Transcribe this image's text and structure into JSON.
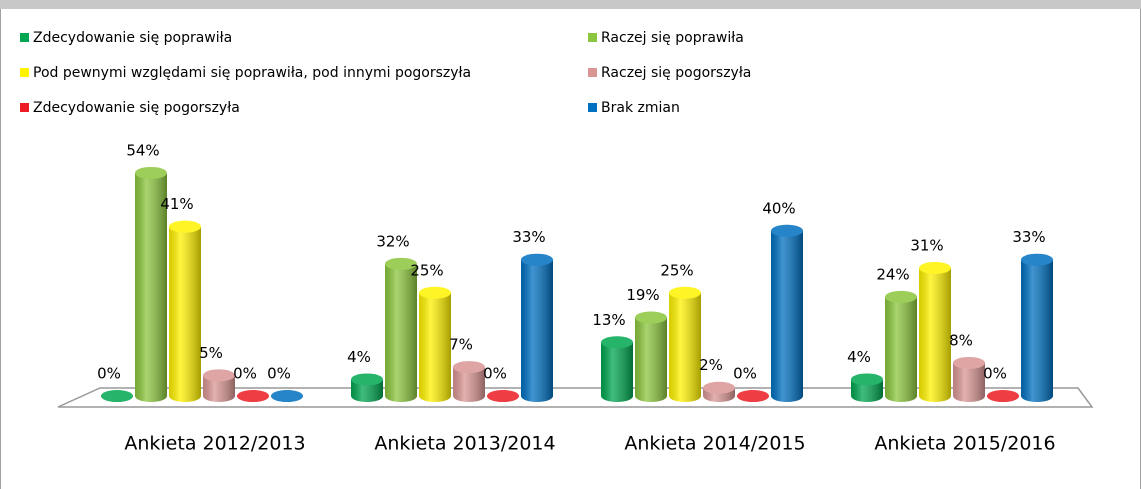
{
  "chart_data": {
    "type": "bar3d",
    "categories": [
      "Ankieta 2012/2013",
      "Ankieta 2013/2014",
      "Ankieta 2014/2015",
      "Ankieta 2015/2016"
    ],
    "series": [
      {
        "name": "Zdecydowanie się poprawiła",
        "color": "#00a650",
        "values": [
          0,
          4,
          13,
          4
        ],
        "value_labels": [
          "0%",
          "4%",
          "13%",
          "4%"
        ]
      },
      {
        "name": "Raczej się poprawiła",
        "color": "#8cc63e",
        "values": [
          54,
          32,
          19,
          24
        ],
        "value_labels": [
          "54%",
          "32%",
          "19%",
          "24%"
        ]
      },
      {
        "name": "Pod pewnymi względami się poprawiła, pod innymi pogorszyła",
        "color": "#fff200",
        "values": [
          41,
          25,
          25,
          31
        ],
        "value_labels": [
          "41%",
          "25%",
          "25%",
          "31%"
        ]
      },
      {
        "name": "Raczej się pogorszyła",
        "color": "#d99694",
        "values": [
          5,
          7,
          2,
          8
        ],
        "value_labels": [
          "5%",
          "7%",
          "2%",
          "8%"
        ]
      },
      {
        "name": "Zdecydowanie się pogorszyła",
        "color": "#ed1c24",
        "values": [
          0,
          0,
          0,
          0
        ],
        "value_labels": [
          "0%",
          "0%",
          "0%",
          "0%"
        ]
      },
      {
        "name": "Brak zmian",
        "color": "#0070c0",
        "values": [
          0,
          33,
          40,
          33
        ],
        "value_labels": [
          "0%",
          "33%",
          "40%",
          "33%"
        ]
      }
    ],
    "legend": "top"
  }
}
